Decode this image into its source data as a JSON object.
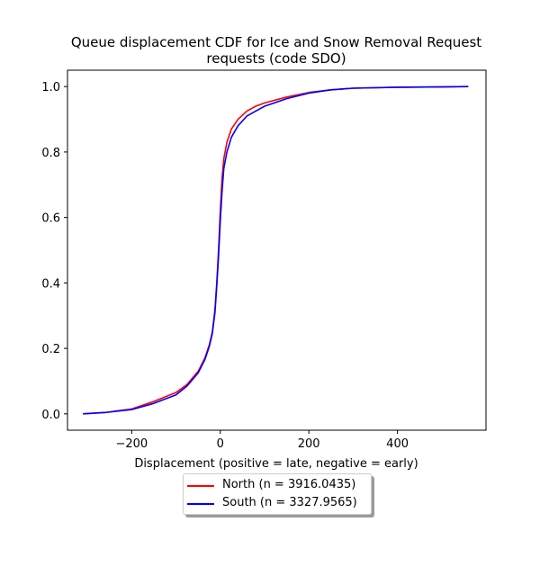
{
  "chart_data": {
    "type": "line",
    "title": "Queue displacement CDF for Ice and Snow Removal Request requests (code SDO)",
    "title_lines": [
      "Queue displacement CDF for Ice and Snow Removal Request",
      "requests (code SDO)"
    ],
    "xlabel": "Displacement (positive = late, negative = early)",
    "ylabel": "",
    "xlim": [
      -345,
      600
    ],
    "ylim": [
      -0.05,
      1.05
    ],
    "x_ticks": [
      -200,
      0,
      200,
      400
    ],
    "x_tick_labels": [
      "−200",
      "0",
      "200",
      "400"
    ],
    "y_ticks": [
      0.0,
      0.2,
      0.4,
      0.6,
      0.8,
      1.0
    ],
    "y_tick_labels": [
      "0.0",
      "0.2",
      "0.4",
      "0.6",
      "0.8",
      "1.0"
    ],
    "grid": false,
    "legend_position": "below plot, centered",
    "series": [
      {
        "name": "North (n = 3916.0435)",
        "color": "#ff0000",
        "points": [
          [
            -310,
            0.0
          ],
          [
            -260,
            0.004
          ],
          [
            -200,
            0.015
          ],
          [
            -150,
            0.038
          ],
          [
            -100,
            0.065
          ],
          [
            -75,
            0.09
          ],
          [
            -50,
            0.13
          ],
          [
            -35,
            0.17
          ],
          [
            -25,
            0.21
          ],
          [
            -18,
            0.25
          ],
          [
            -12,
            0.32
          ],
          [
            -8,
            0.4
          ],
          [
            -4,
            0.5
          ],
          [
            0,
            0.62
          ],
          [
            4,
            0.72
          ],
          [
            8,
            0.78
          ],
          [
            15,
            0.83
          ],
          [
            25,
            0.87
          ],
          [
            40,
            0.9
          ],
          [
            60,
            0.925
          ],
          [
            80,
            0.94
          ],
          [
            100,
            0.95
          ],
          [
            150,
            0.968
          ],
          [
            200,
            0.982
          ],
          [
            250,
            0.99
          ],
          [
            300,
            0.995
          ],
          [
            400,
            0.998
          ],
          [
            500,
            0.999
          ],
          [
            560,
            1.0
          ]
        ]
      },
      {
        "name": "South (n = 3327.9565)",
        "color": "#0000ff",
        "points": [
          [
            -310,
            0.0
          ],
          [
            -260,
            0.004
          ],
          [
            -200,
            0.013
          ],
          [
            -150,
            0.032
          ],
          [
            -100,
            0.058
          ],
          [
            -75,
            0.085
          ],
          [
            -50,
            0.125
          ],
          [
            -35,
            0.165
          ],
          [
            -25,
            0.205
          ],
          [
            -18,
            0.245
          ],
          [
            -12,
            0.31
          ],
          [
            -8,
            0.39
          ],
          [
            -4,
            0.48
          ],
          [
            0,
            0.59
          ],
          [
            4,
            0.68
          ],
          [
            8,
            0.75
          ],
          [
            15,
            0.8
          ],
          [
            25,
            0.845
          ],
          [
            40,
            0.88
          ],
          [
            60,
            0.91
          ],
          [
            80,
            0.925
          ],
          [
            100,
            0.94
          ],
          [
            150,
            0.963
          ],
          [
            200,
            0.98
          ],
          [
            250,
            0.99
          ],
          [
            300,
            0.995
          ],
          [
            400,
            0.998
          ],
          [
            500,
            0.999
          ],
          [
            560,
            1.0
          ]
        ]
      }
    ]
  }
}
